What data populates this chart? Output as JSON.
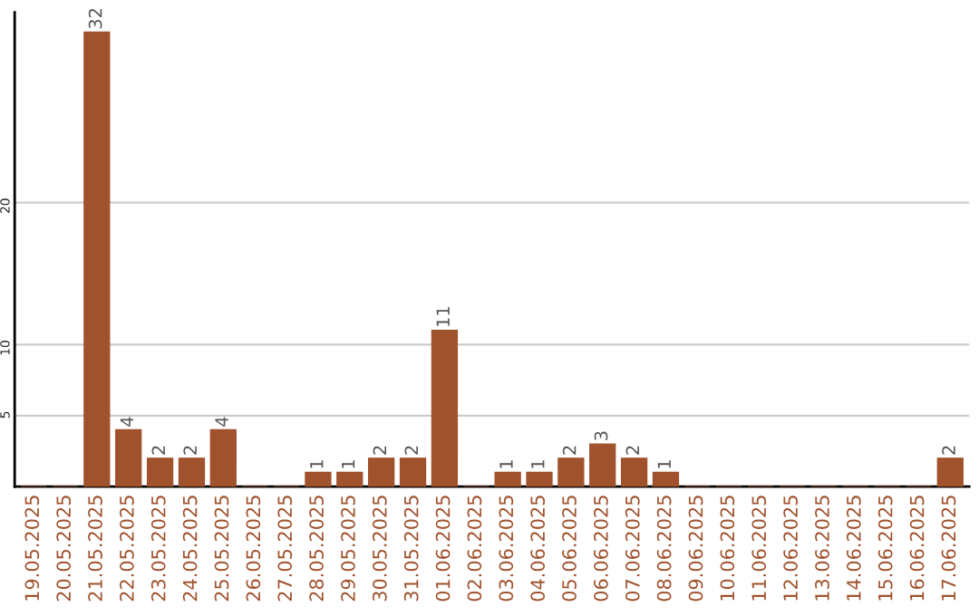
{
  "chart_data": {
    "type": "bar",
    "categories": [
      "19.05.2025",
      "20.05.2025",
      "21.05.2025",
      "22.05.2025",
      "23.05.2025",
      "24.05.2025",
      "25.05.2025",
      "26.05.2025",
      "27.05.2025",
      "28.05.2025",
      "29.05.2025",
      "30.05.2025",
      "31.05.2025",
      "01.06.2025",
      "02.06.2025",
      "03.06.2025",
      "04.06.2025",
      "05.06.2025",
      "06.06.2025",
      "07.06.2025",
      "08.06.2025",
      "09.06.2025",
      "10.06.2025",
      "11.06.2025",
      "12.06.2025",
      "13.06.2025",
      "14.06.2025",
      "15.06.2025",
      "16.06.2025",
      "17.06.2025"
    ],
    "values": [
      0,
      0,
      32,
      4,
      2,
      2,
      4,
      0,
      0,
      1,
      1,
      2,
      2,
      11,
      0,
      1,
      1,
      2,
      3,
      2,
      1,
      0,
      0,
      0,
      0,
      0,
      0,
      0,
      0,
      2
    ],
    "value_labels": [
      null,
      null,
      "32",
      "4",
      "2",
      "2",
      "4",
      null,
      null,
      "1",
      "1",
      "2",
      "2",
      "11",
      null,
      "1",
      "1",
      "2",
      "3",
      "2",
      "1",
      null,
      null,
      null,
      null,
      null,
      null,
      null,
      null,
      "2"
    ],
    "color": "#a0522d",
    "ylim": [
      0,
      33.4
    ],
    "yticks": [
      5,
      10,
      20
    ],
    "grid": "y"
  }
}
